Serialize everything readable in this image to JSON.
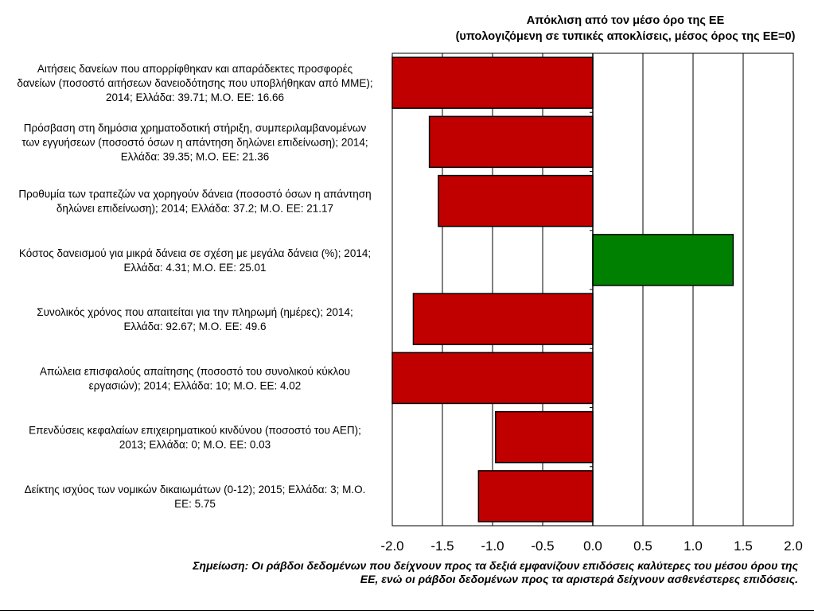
{
  "chart_data": {
    "type": "bar",
    "orientation": "horizontal",
    "title": "Απόκλιση από τον μέσο όρο της ΕΕ",
    "subtitle": "(υπολογιζόμενη σε τυπικές αποκλίσεις, μέσος όρος της ΕΕ=0)",
    "categories": [
      [
        "Αιτήσεις δανείων που απορρίφθηκαν και απαράδεκτες προσφορές",
        "δανείων (ποσοστό αιτήσεων δανειοδότησης που υποβλήθηκαν από ΜΜΕ);",
        "2014; Ελλάδα: 39.71; Μ.Ο. ΕΕ: 16.66"
      ],
      [
        "Πρόσβαση στη δημόσια χρηματοδοτική στήριξη, συμπεριλαμβανομένων",
        "των εγγυήσεων (ποσοστό όσων η απάντηση δηλώνει επιδείνωση); 2014;",
        "Ελλάδα: 39.35; Μ.Ο. ΕΕ: 21.36"
      ],
      [
        "Προθυμία των τραπεζών να χορηγούν δάνεια (ποσοστό όσων η απάντηση",
        "δηλώνει επιδείνωση);  2014; Ελλάδα: 37.2; Μ.Ο. ΕΕ: 21.17"
      ],
      [
        "Κόστος δανεισμού για μικρά δάνεια σε σχέση με μεγάλα δάνεια (%); 2014;",
        "Ελλάδα: 4.31; Μ.Ο. ΕΕ: 25.01"
      ],
      [
        "Συνολικός χρόνος που απαιτείται για την πληρωμή (ημέρες); 2014;",
        "Ελλάδα: 92.67; Μ.Ο. ΕΕ: 49.6"
      ],
      [
        "Απώλεια επισφαλούς απαίτησης (ποσοστό του συνολικού κύκλου",
        "εργασιών);  2014; Ελλάδα: 10; Μ.Ο. ΕΕ: 4.02"
      ],
      [
        "Επενδύσεις κεφαλαίων επιχειρηματικού  κινδύνου (ποσοστό του ΑΕΠ);",
        "2013; Ελλάδα: 0; Μ.Ο. ΕΕ: 0.03"
      ],
      [
        "Δείκτης ισχύος των νομικών δικαιωμάτων (0-12); 2015; Ελλάδα: 3; Μ.Ο.",
        "ΕΕ: 5.75"
      ]
    ],
    "values": [
      -2.0,
      -1.63,
      -1.54,
      1.4,
      -1.79,
      -2.0,
      -0.97,
      -1.14
    ],
    "xlim": [
      -2.0,
      2.0
    ],
    "xticks": [
      "-2.0",
      "-1.5",
      "-1.0",
      "-0.5",
      "0.0",
      "0.5",
      "1.0",
      "1.5",
      "2.0"
    ],
    "xtick_values": [
      -2.0,
      -1.5,
      -1.0,
      -0.5,
      0.0,
      0.5,
      1.0,
      1.5,
      2.0
    ],
    "grid": true,
    "colors": {
      "negative": "#c00000",
      "positive": "#008000",
      "outline": "#000000"
    }
  },
  "note": [
    "Σημείωση: Οι ράβδοι δεδομένων που δείχνουν προς τα δεξιά εμφανίζουν επιδόσεις καλύτερες του μέσου όρου της",
    "ΕΕ, ενώ οι ράβδοι δεδομένων προς τα αριστερά δείχνουν ασθενέστερες επιδόσεις."
  ]
}
